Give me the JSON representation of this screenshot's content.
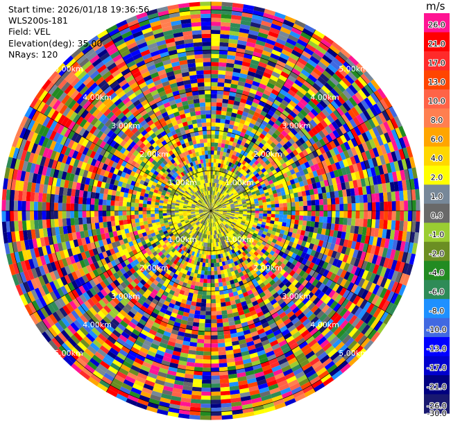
{
  "metadata": {
    "start_time": "Start time: 2026/01/18 19:36:56",
    "instrument": "WLS200s-181",
    "field": "Field: VEL",
    "elevation": "Elevation(deg): 35.00",
    "nrays": "NRays: 120"
  },
  "chart_data": {
    "type": "heatmap",
    "projection": "polar-ppi",
    "range_rings_km": [
      1.0,
      2.0,
      3.0,
      4.0,
      5.0
    ],
    "ring_labels": [
      "1.00km",
      "2.00km",
      "3.00km",
      "4.00km",
      "5.00km"
    ],
    "max_range_km": 5.2,
    "n_rays": 120,
    "colorbar": {
      "unit": "m/s",
      "ticks": [
        "26.0",
        "21.0",
        "17.0",
        "13.0",
        "10.0",
        "8.0",
        "6.0",
        "4.0",
        "2.0",
        "1.0",
        "0.0",
        "-1.0",
        "-2.0",
        "-4.0",
        "-6.0",
        "-8.0",
        "-10.0",
        "-13.0",
        "-17.0",
        "-21.0",
        "-26.0",
        "-30.0"
      ],
      "colors": [
        "#ff1493",
        "#ff0000",
        "#ff2a2a",
        "#ff4500",
        "#ff6347",
        "#ff7f50",
        "#ffa500",
        "#ffd700",
        "#ffff00",
        "#778899",
        "#696969",
        "#9acd32",
        "#6b8e23",
        "#228b22",
        "#2e8b57",
        "#1e90ff",
        "#4169e1",
        "#0000ff",
        "#0000cd",
        "#000080",
        "#191970"
      ]
    }
  }
}
